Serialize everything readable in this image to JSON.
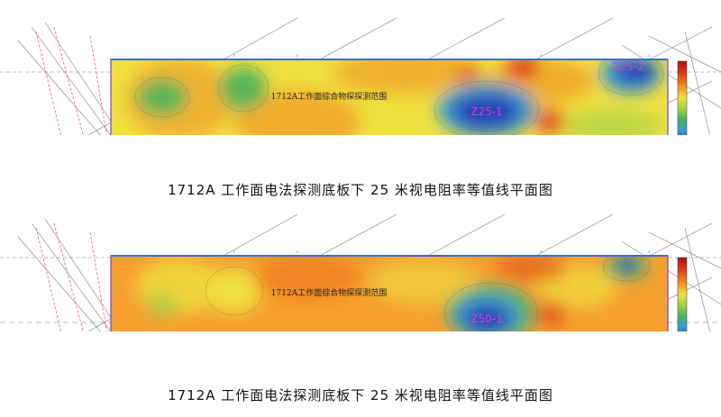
{
  "panels": [
    {
      "id": "top",
      "inner_title": "1712A工作面综合物探探测范围",
      "caption": "1712A 工作面电法探测底板下 25 米视电阻率等值线平面图",
      "zone_labels": [
        "Z25-1",
        "Z25-2"
      ],
      "colors": {
        "background": "#f0e040",
        "warm": "#f08a1e",
        "hot": "#e03a1a",
        "cool": "#2a3fb8",
        "cool_mid": "#3aa0d0",
        "green": "#5ab55a"
      }
    },
    {
      "id": "bottom",
      "inner_title": "1712A工作面综合物探探测范围",
      "caption": "1712A 工作面电法探测底板下 25 米视电阻率等值线平面图",
      "zone_labels": [
        "Z50-1"
      ],
      "colors": {
        "background": "#f5a030",
        "warm": "#f07a1a",
        "hot": "#e04a16",
        "cool": "#2a3fb8",
        "cool_mid": "#3aa0d0",
        "green": "#5ab55a"
      }
    }
  ],
  "legend_colors": [
    "#b01010",
    "#e03a1a",
    "#f08a1e",
    "#f5c030",
    "#f0e040",
    "#9ad048",
    "#4ab060",
    "#3aa0d0",
    "#2a58c0",
    "#2a3fb8"
  ]
}
